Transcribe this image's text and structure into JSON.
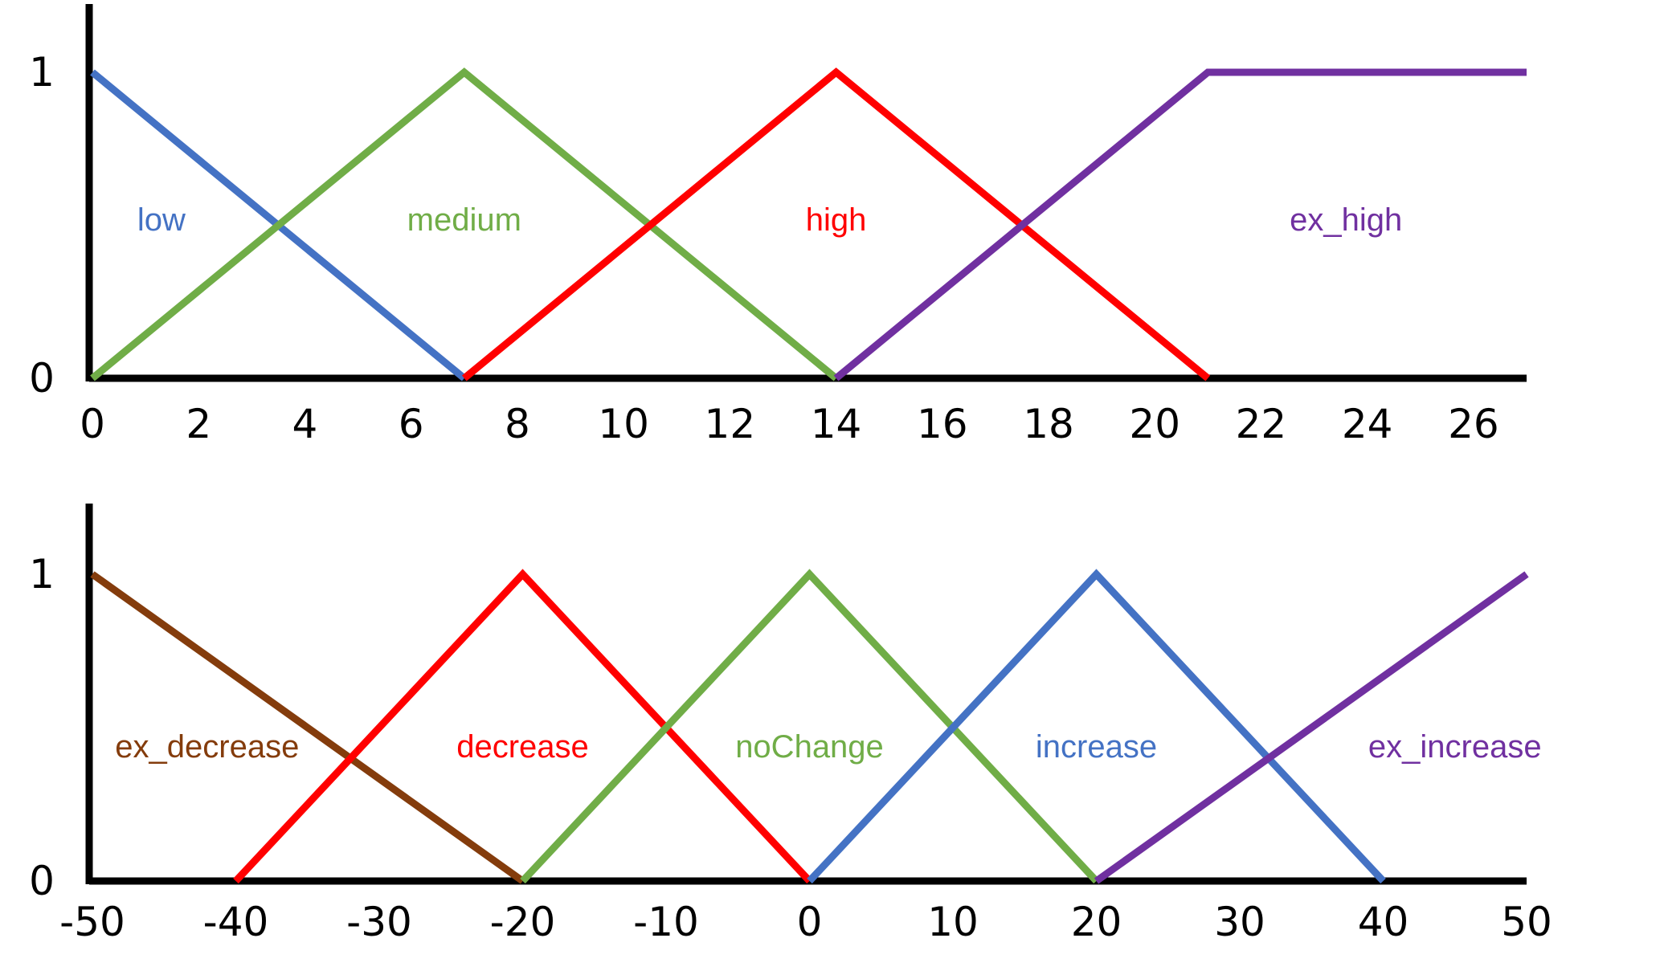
{
  "chart_data": [
    {
      "type": "line",
      "title": "",
      "xlabel": "",
      "ylabel": "",
      "xlim": [
        0,
        27
      ],
      "ylim": [
        0,
        1
      ],
      "x_ticks": [
        0,
        2,
        4,
        6,
        8,
        10,
        12,
        14,
        16,
        18,
        20,
        22,
        24,
        26
      ],
      "y_ticks": [
        0,
        1
      ],
      "grid": false,
      "series": [
        {
          "name": "low",
          "color": "#4472C4",
          "points": [
            [
              0,
              1
            ],
            [
              7,
              0
            ]
          ],
          "label_pos": [
            1.3,
            0.52
          ]
        },
        {
          "name": "medium",
          "color": "#70AD47",
          "points": [
            [
              0,
              0
            ],
            [
              7,
              1
            ],
            [
              14,
              0
            ]
          ],
          "label_pos": [
            7,
            0.52
          ]
        },
        {
          "name": "high",
          "color": "#FF0000",
          "points": [
            [
              7,
              0
            ],
            [
              14,
              1
            ],
            [
              21,
              0
            ]
          ],
          "label_pos": [
            14,
            0.52
          ]
        },
        {
          "name": "ex_high",
          "color": "#7030A0",
          "points": [
            [
              14,
              0
            ],
            [
              21,
              1
            ],
            [
              27,
              1
            ]
          ],
          "label_pos": [
            23.6,
            0.52
          ]
        }
      ]
    },
    {
      "type": "line",
      "title": "",
      "xlabel": "",
      "ylabel": "",
      "xlim": [
        -50,
        50
      ],
      "ylim": [
        0,
        1
      ],
      "x_ticks": [
        -50,
        -40,
        -30,
        -20,
        -10,
        0,
        10,
        20,
        30,
        40,
        50
      ],
      "y_ticks": [
        0,
        1
      ],
      "grid": false,
      "series": [
        {
          "name": "ex_decrease",
          "color": "#843C0C",
          "points": [
            [
              -50,
              1
            ],
            [
              -20,
              0
            ]
          ],
          "label_pos": [
            -42,
            0.44
          ]
        },
        {
          "name": "decrease",
          "color": "#FF0000",
          "points": [
            [
              -40,
              0
            ],
            [
              -20,
              1
            ],
            [
              0,
              0
            ]
          ],
          "label_pos": [
            -20,
            0.44
          ]
        },
        {
          "name": "noChange",
          "color": "#70AD47",
          "points": [
            [
              -20,
              0
            ],
            [
              0,
              1
            ],
            [
              20,
              0
            ]
          ],
          "label_pos": [
            0,
            0.44
          ]
        },
        {
          "name": "increase",
          "color": "#4472C4",
          "points": [
            [
              0,
              0
            ],
            [
              20,
              1
            ],
            [
              40,
              0
            ]
          ],
          "label_pos": [
            20,
            0.44
          ]
        },
        {
          "name": "ex_increase",
          "color": "#7030A0",
          "points": [
            [
              20,
              0
            ],
            [
              50,
              1
            ]
          ],
          "label_pos": [
            45,
            0.44
          ]
        }
      ]
    }
  ]
}
